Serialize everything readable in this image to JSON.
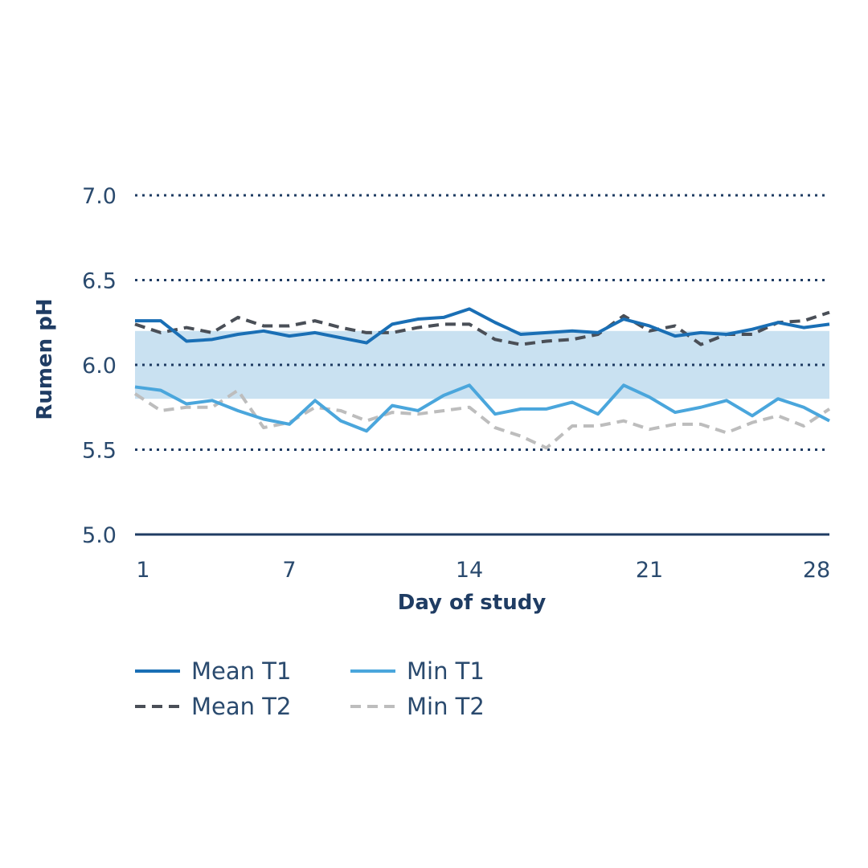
{
  "chart_data": {
    "type": "line",
    "title": "",
    "xlabel": "Day of study",
    "ylabel": "Rumen pH",
    "xlim": [
      1,
      28
    ],
    "ylim": [
      5.0,
      7.0
    ],
    "xticks": [
      "1",
      "7",
      "14",
      "21",
      "28"
    ],
    "yticks": [
      "7.0",
      "6.5",
      "6.0",
      "5.5",
      "5.0"
    ],
    "grid": "dotted horizontal",
    "band": {
      "from": 5.8,
      "to": 6.2,
      "color": "#c9e1f1"
    },
    "x": [
      1,
      2,
      3,
      4,
      5,
      6,
      7,
      8,
      9,
      10,
      11,
      12,
      13,
      14,
      15,
      16,
      17,
      18,
      19,
      20,
      21,
      22,
      23,
      24,
      25,
      26,
      27,
      28
    ],
    "series": [
      {
        "name": "Mean T1",
        "color": "#1a6fb5",
        "dash": "solid",
        "values": [
          6.26,
          6.26,
          6.14,
          6.15,
          6.18,
          6.2,
          6.17,
          6.19,
          6.16,
          6.13,
          6.24,
          6.27,
          6.28,
          6.33,
          6.25,
          6.18,
          6.19,
          6.2,
          6.19,
          6.27,
          6.23,
          6.17,
          6.19,
          6.18,
          6.21,
          6.25,
          6.22,
          6.24
        ]
      },
      {
        "name": "Mean T2",
        "color": "#4a4f57",
        "dash": "dashed",
        "values": [
          6.24,
          6.19,
          6.22,
          6.19,
          6.28,
          6.23,
          6.23,
          6.26,
          6.22,
          6.19,
          6.19,
          6.22,
          6.24,
          6.24,
          6.15,
          6.12,
          6.14,
          6.15,
          6.18,
          6.29,
          6.2,
          6.23,
          6.12,
          6.18,
          6.18,
          6.25,
          6.26,
          6.31
        ]
      },
      {
        "name": "Min T1",
        "color": "#4aa6dc",
        "dash": "solid",
        "values": [
          5.87,
          5.85,
          5.77,
          5.79,
          5.73,
          5.68,
          5.65,
          5.79,
          5.67,
          5.61,
          5.76,
          5.73,
          5.82,
          5.88,
          5.71,
          5.74,
          5.74,
          5.78,
          5.71,
          5.88,
          5.81,
          5.72,
          5.75,
          5.79,
          5.7,
          5.8,
          5.75,
          5.67
        ]
      },
      {
        "name": "Min T2",
        "color": "#bdbdbd",
        "dash": "dashed",
        "values": [
          5.83,
          5.73,
          5.75,
          5.75,
          5.85,
          5.63,
          5.66,
          5.75,
          5.73,
          5.67,
          5.72,
          5.71,
          5.73,
          5.75,
          5.63,
          5.58,
          5.51,
          5.64,
          5.64,
          5.67,
          5.62,
          5.65,
          5.65,
          5.6,
          5.66,
          5.7,
          5.64,
          5.74
        ]
      }
    ],
    "legend": "bottom-left"
  }
}
